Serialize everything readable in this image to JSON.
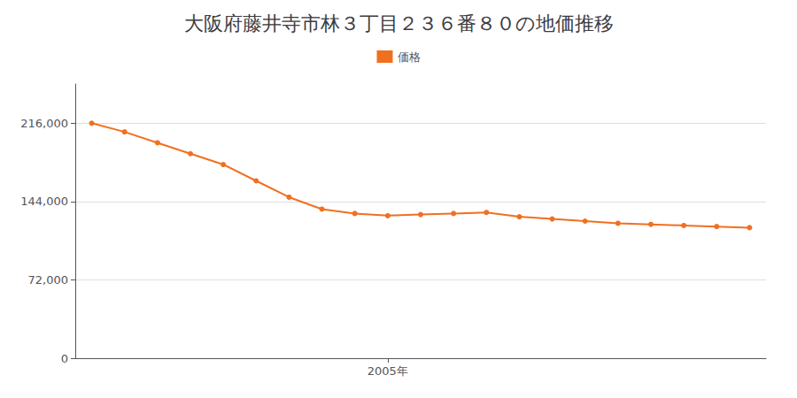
{
  "chart_data": {
    "type": "line",
    "title": "大阪府藤井寺市林３丁目２３６番８０の地価推移",
    "x": [
      1996,
      1997,
      1998,
      1999,
      2000,
      2001,
      2002,
      2003,
      2004,
      2005,
      2006,
      2007,
      2008,
      2009,
      2010,
      2011,
      2012,
      2013,
      2014,
      2015,
      2016
    ],
    "series": [
      {
        "name": "価格",
        "color": "#f07020",
        "marker": "circle",
        "values": [
          216000,
          208000,
          198000,
          188000,
          178000,
          163000,
          148000,
          137000,
          133000,
          131000,
          132000,
          133000,
          134000,
          130000,
          128000,
          126000,
          124000,
          123000,
          122000,
          121000,
          120000
        ]
      }
    ],
    "xlim": [
      1995.5,
      2016.5
    ],
    "xticks": [
      {
        "value": 2005,
        "label": "2005年"
      }
    ],
    "ylim": [
      0,
      252000
    ],
    "yticks": [
      0,
      {
        "value": 72000,
        "label": "72,000"
      },
      {
        "value": 144000,
        "label": "144,000"
      },
      {
        "value": 216000,
        "label": "216,000"
      }
    ],
    "grid": true,
    "legend": "top"
  }
}
